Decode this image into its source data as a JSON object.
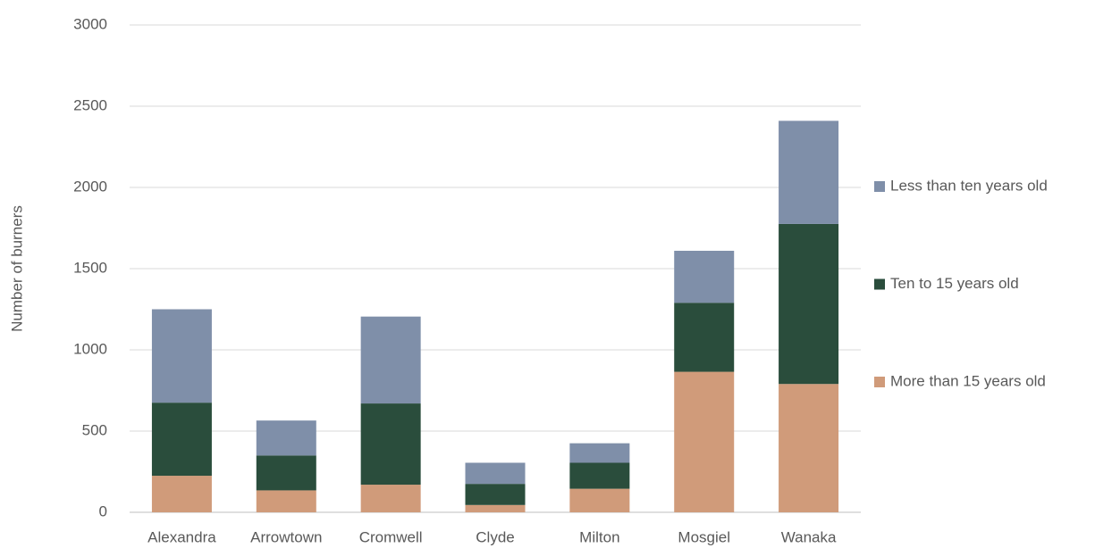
{
  "chart_data": {
    "type": "stacked_bar",
    "y_label": "Number of burners",
    "categories": [
      "Alexandra",
      "Arrowtown",
      "Cromwell",
      "Clyde",
      "Milton",
      "Mosgiel",
      "Wanaka"
    ],
    "series": [
      {
        "name": "More than 15 years old",
        "color": "#d09b7a",
        "values": [
          225,
          135,
          170,
          45,
          145,
          865,
          790
        ]
      },
      {
        "name": "Ten to 15 years old",
        "color": "#2a4d3c",
        "values": [
          450,
          215,
          500,
          130,
          160,
          425,
          985
        ]
      },
      {
        "name": "Less than ten years old",
        "color": "#7f8fa9",
        "values": [
          575,
          215,
          535,
          130,
          120,
          320,
          635
        ]
      }
    ],
    "ylim": [
      0,
      3000
    ],
    "yticks": [
      0,
      500,
      1000,
      1500,
      2000,
      2500,
      3000
    ],
    "grid": true,
    "legend": "right"
  }
}
